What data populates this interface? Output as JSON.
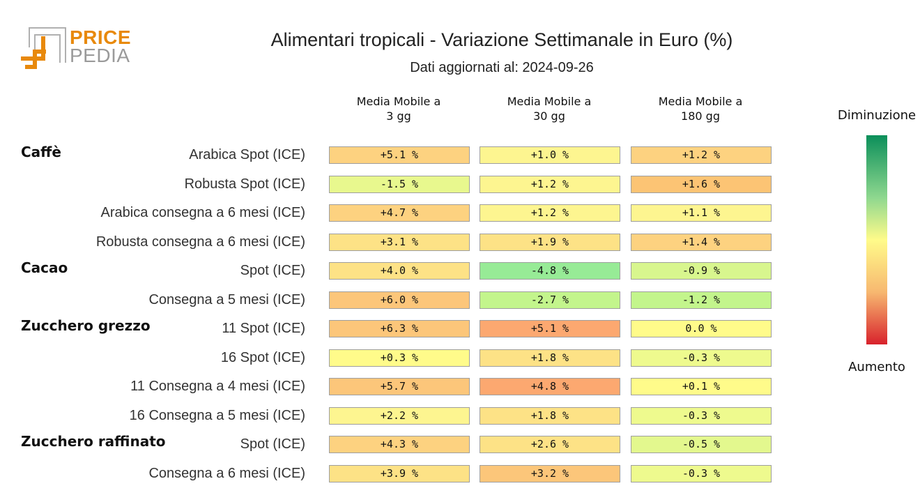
{
  "logo": {
    "line1": "PRICE",
    "line2": "PEDIA"
  },
  "chart_data": {
    "type": "heatmap",
    "title": "Alimentari tropicali - Variazione Settimanale in Euro (%)",
    "subtitle": "Dati aggiornati al: 2024-09-26",
    "columns": [
      {
        "line1": "Media Mobile a",
        "line2": "3 gg"
      },
      {
        "line1": "Media Mobile a",
        "line2": "30 gg"
      },
      {
        "line1": "Media Mobile a",
        "line2": "180 gg"
      }
    ],
    "rows": [
      {
        "group": "Caffè",
        "label": "Arabica Spot (ICE)",
        "values": [
          5.1,
          1.0,
          1.2
        ],
        "display": [
          "+5.1 %",
          "+1.0 %",
          "+1.2 %"
        ]
      },
      {
        "group": "",
        "label": "Robusta Spot (ICE)",
        "values": [
          -1.5,
          1.2,
          1.6
        ],
        "display": [
          "-1.5 %",
          "+1.2 %",
          "+1.6 %"
        ]
      },
      {
        "group": "",
        "label": "Arabica consegna a 6 mesi (ICE)",
        "values": [
          4.7,
          1.2,
          1.1
        ],
        "display": [
          "+4.7 %",
          "+1.2 %",
          "+1.1 %"
        ]
      },
      {
        "group": "",
        "label": "Robusta consegna a 6 mesi (ICE)",
        "values": [
          3.1,
          1.9,
          1.4
        ],
        "display": [
          "+3.1 %",
          "+1.9 %",
          "+1.4 %"
        ]
      },
      {
        "group": "Cacao",
        "label": "Spot (ICE)",
        "values": [
          4.0,
          -4.8,
          -0.9
        ],
        "display": [
          "+4.0 %",
          "-4.8 %",
          "-0.9 %"
        ]
      },
      {
        "group": "",
        "label": "Consegna a 5 mesi (ICE)",
        "values": [
          6.0,
          -2.7,
          -1.2
        ],
        "display": [
          "+6.0 %",
          "-2.7 %",
          "-1.2 %"
        ]
      },
      {
        "group": "Zucchero grezzo",
        "label": "11 Spot (ICE)",
        "values": [
          6.3,
          5.1,
          0.0
        ],
        "display": [
          "+6.3 %",
          "+5.1 %",
          "0.0 %"
        ]
      },
      {
        "group": "",
        "label": "16 Spot (ICE)",
        "values": [
          0.3,
          1.8,
          -0.3
        ],
        "display": [
          "+0.3 %",
          "+1.8 %",
          "-0.3 %"
        ]
      },
      {
        "group": "",
        "label": "11 Consegna a 4 mesi (ICE)",
        "values": [
          5.7,
          4.8,
          0.1
        ],
        "display": [
          "+5.7 %",
          "+4.8 %",
          "+0.1 %"
        ]
      },
      {
        "group": "",
        "label": "16 Consegna a 5 mesi (ICE)",
        "values": [
          2.2,
          1.8,
          -0.3
        ],
        "display": [
          "+2.2 %",
          "+1.8 %",
          "-0.3 %"
        ]
      },
      {
        "group": "Zucchero raffinato",
        "label": "Spot (ICE)",
        "values": [
          4.3,
          2.6,
          -0.5
        ],
        "display": [
          "+4.3 %",
          "+2.6 %",
          "-0.5 %"
        ]
      },
      {
        "group": "",
        "label": "Consegna a 6 mesi (ICE)",
        "values": [
          3.9,
          3.2,
          -0.3
        ],
        "display": [
          "+3.9 %",
          "+3.2 %",
          "-0.3 %"
        ]
      }
    ],
    "colors": {
      "cells": [
        [
          "#fdd280",
          "#fdf590",
          "#fdd280"
        ],
        [
          "#e8f88e",
          "#fdf590",
          "#fcc474"
        ],
        [
          "#fdd280",
          "#fdf590",
          "#fdf590"
        ],
        [
          "#fde286",
          "#fde286",
          "#fdd280"
        ],
        [
          "#fde286",
          "#97eb96",
          "#d8f68e"
        ],
        [
          "#fcc67a",
          "#c3f58c",
          "#c3f58c"
        ],
        [
          "#fcc67a",
          "#fca870",
          "#fffb8a"
        ],
        [
          "#fffb8a",
          "#fde286",
          "#eefa8e"
        ],
        [
          "#fcc67a",
          "#fca870",
          "#fffb8a"
        ],
        [
          "#fdf590",
          "#fde286",
          "#eefa8e"
        ],
        [
          "#fdd280",
          "#fde286",
          "#e3f88e"
        ],
        [
          "#fde286",
          "#fcc67a",
          "#eefa8e"
        ]
      ],
      "scale": [
        "#0b8f5a",
        "#8fd88f",
        "#fffb8a",
        "#f7b870",
        "#d8222c"
      ]
    },
    "legend": {
      "top": "Diminuzione",
      "bottom": "Aumento",
      "placement": "right"
    }
  }
}
